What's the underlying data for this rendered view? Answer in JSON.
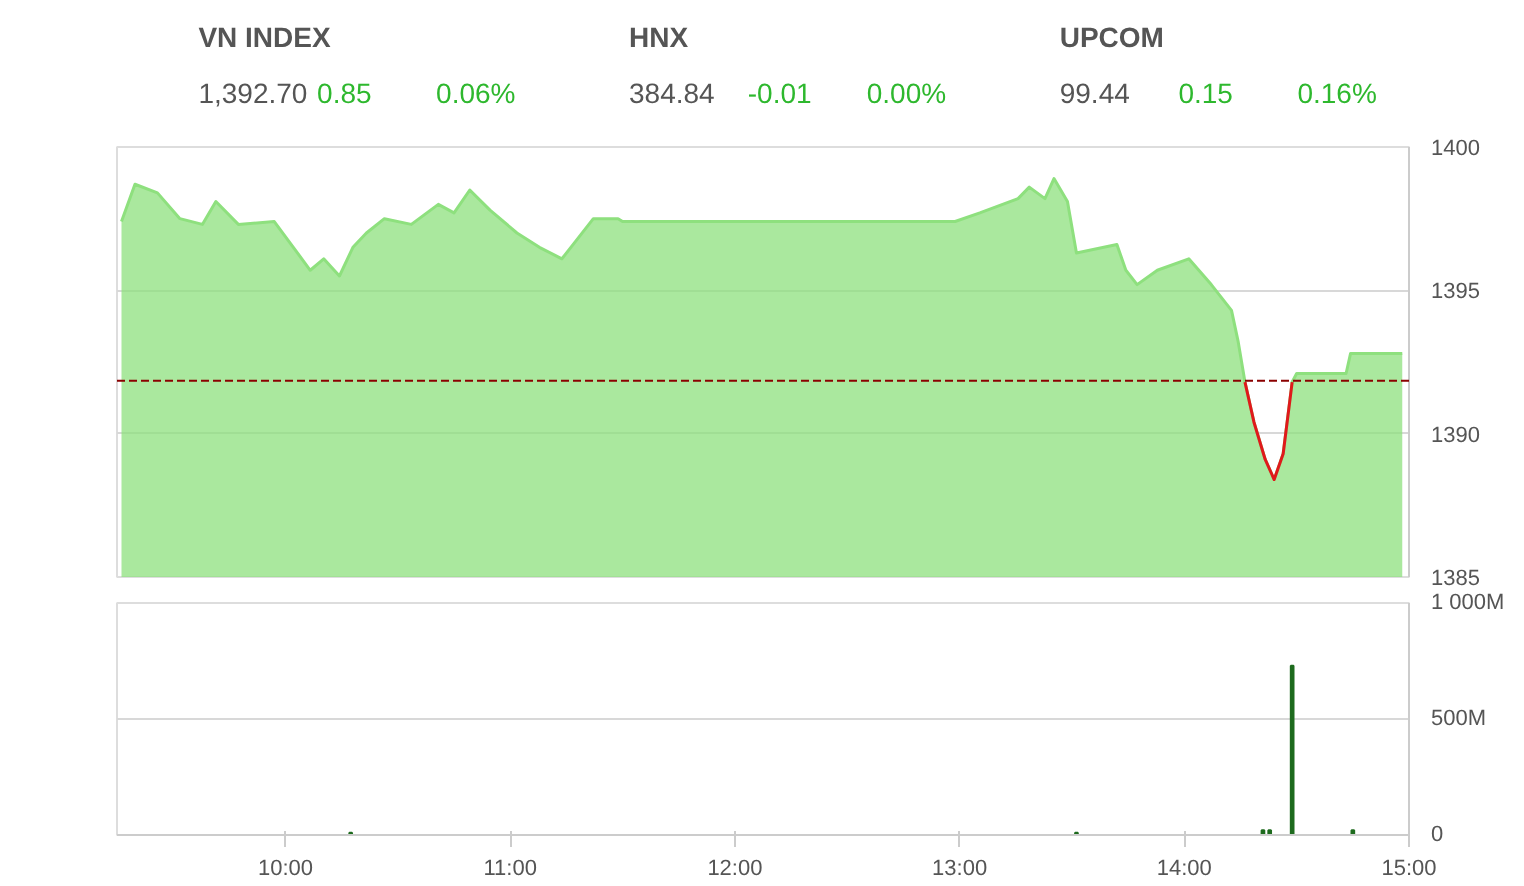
{
  "chart_data": [
    {
      "type": "other",
      "categories": [
        "VN INDEX",
        "HNX",
        "UPCOM"
      ],
      "annotations": [
        "1,392.70",
        "0.85",
        "0.06%",
        "384.84",
        "-0.01",
        "0.00%",
        "99.44",
        "0.15",
        "0.16%"
      ]
    },
    {
      "type": "area",
      "xlim": [
        9.25,
        15
      ],
      "ylim": [
        1385,
        1400
      ],
      "yticks": [
        1385,
        1390,
        1395,
        1400
      ],
      "tick_labels": "y",
      "grid": "y",
      "marker": "none",
      "line_style": "solid",
      "ref_lines": [
        {
          "axis": "y",
          "value": 1391.85,
          "color": "#8b0000",
          "line_style": "dashed"
        }
      ],
      "series": [
        {
          "type": "area",
          "color": "#8ee07e",
          "x": [
            9.27,
            9.33,
            9.43,
            9.53,
            9.63,
            9.69,
            9.79,
            9.95,
            10.11,
            10.17,
            10.24,
            10.3,
            10.36,
            10.44,
            10.56,
            10.68,
            10.75,
            10.82,
            10.91,
            11.03,
            11.13,
            11.23,
            11.29,
            11.37,
            11.48,
            11.5,
            12.98,
            13.09,
            13.26,
            13.31,
            13.38,
            13.42,
            13.48,
            13.52,
            13.7,
            13.74,
            13.79,
            13.88,
            14.02,
            14.12,
            14.21,
            14.24,
            14.27,
            14.31,
            14.36,
            14.4,
            14.44,
            14.48,
            14.5,
            14.72,
            14.74,
            14.97
          ],
          "values": [
            1397.4,
            1398.7,
            1398.4,
            1397.5,
            1397.3,
            1398.1,
            1397.3,
            1397.4,
            1395.7,
            1396.1,
            1395.5,
            1396.5,
            1397.0,
            1397.5,
            1397.3,
            1398.0,
            1397.7,
            1398.5,
            1397.8,
            1397.0,
            1396.5,
            1396.1,
            1396.7,
            1397.5,
            1397.5,
            1397.4,
            1397.4,
            1397.7,
            1398.2,
            1398.6,
            1398.2,
            1398.9,
            1398.1,
            1396.3,
            1396.6,
            1395.7,
            1395.2,
            1395.7,
            1396.1,
            1395.2,
            1394.3,
            1393.2,
            1391.8,
            1390.4,
            1389.1,
            1388.4,
            1389.3,
            1391.8,
            1392.1,
            1392.1,
            1392.8,
            1392.8
          ]
        },
        {
          "type": "line",
          "color": "#e0191b",
          "x": [
            14.27,
            14.31,
            14.36,
            14.4,
            14.44,
            14.48
          ],
          "values": [
            1391.8,
            1390.4,
            1389.1,
            1388.4,
            1389.3,
            1391.8
          ]
        }
      ]
    },
    {
      "type": "bar",
      "xlim": [
        9.25,
        15
      ],
      "ylim": [
        0,
        1000
      ],
      "yticks": [
        {
          "value": 0,
          "label": "0"
        },
        {
          "value": 500,
          "label": "500M"
        },
        {
          "value": 1000,
          "label": "1 000M"
        }
      ],
      "xticks": [
        {
          "value": 10,
          "label": "10:00"
        },
        {
          "value": 11,
          "label": "11:00"
        },
        {
          "value": 12,
          "label": "12:00"
        },
        {
          "value": 13,
          "label": "13:00"
        },
        {
          "value": 14,
          "label": "14:00"
        },
        {
          "value": 15,
          "label": "15:00"
        }
      ],
      "grid": "y",
      "x": [
        10.29,
        13.52,
        14.35,
        14.38,
        14.48,
        14.75
      ],
      "values": [
        10,
        10,
        20,
        20,
        730,
        20
      ],
      "color": "#1e6b1e"
    }
  ]
}
